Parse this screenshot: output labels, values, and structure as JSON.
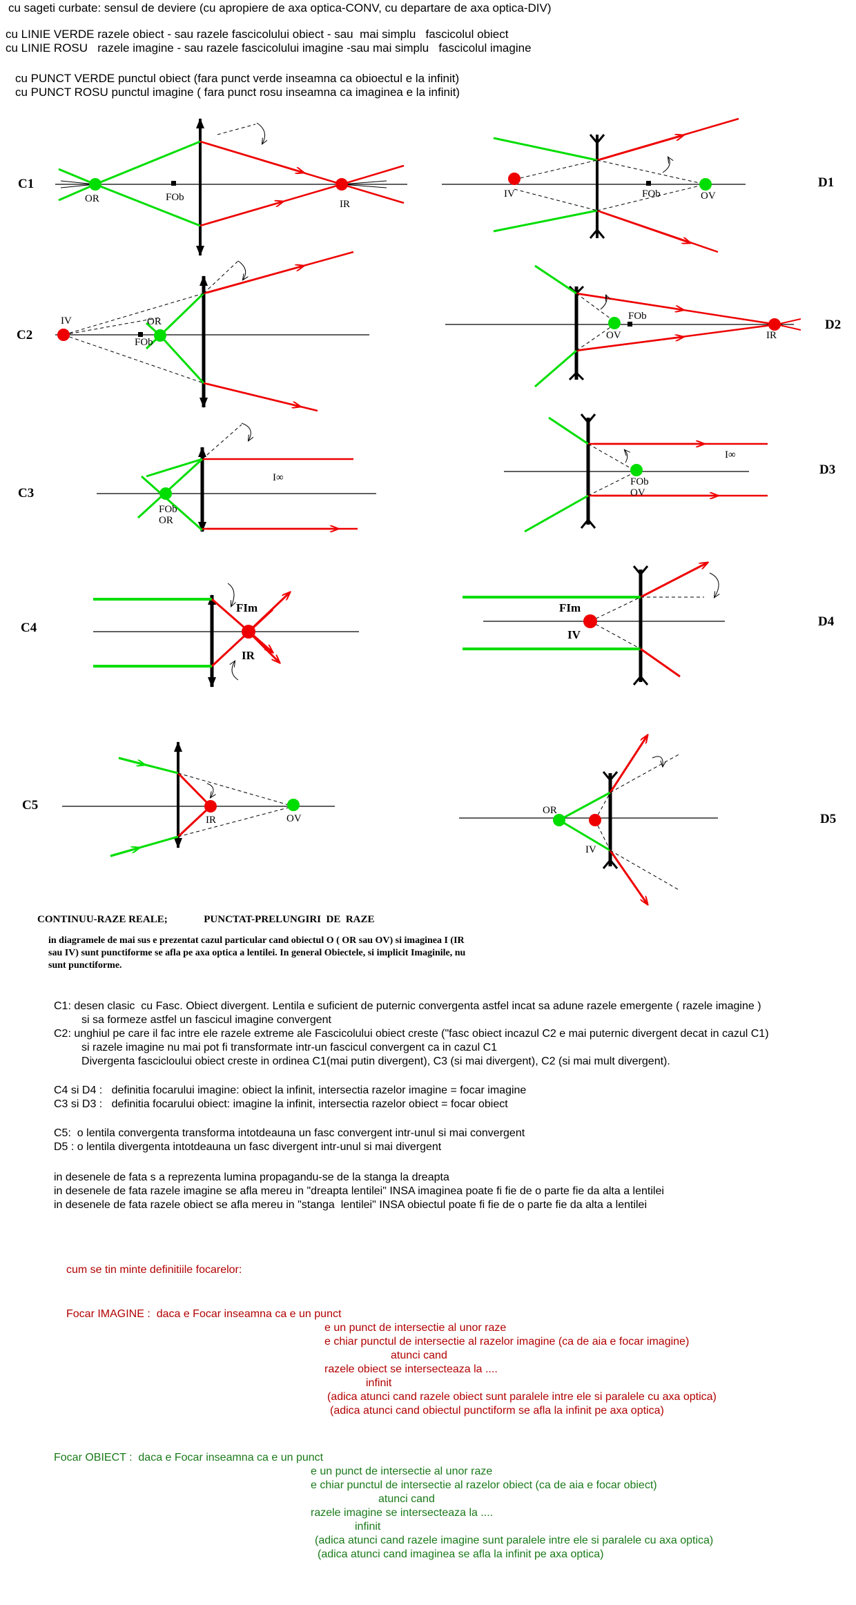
{
  "legend": {
    "line1": "cu sageti curbate: sensul de deviere (cu apropiere de axa optica-CONV, cu departare de axa optica-DIV)",
    "line2": "cu LINIE VERDE razele obiect - sau razele fascicolului obiect - sau  mai simplu   fascicolul obiect",
    "line3": "cu LINIE ROSU   razele imagine - sau razele fascicolului imagine -sau mai simplu   fascicolul imagine",
    "line4": "cu PUNCT VERDE punctul obiect (fara punct verde inseamna ca obioectul e la infinit)",
    "line5": "cu PUNCT ROSU punctul imagine ( fara punct rosu inseamna ca imaginea e la infinit)"
  },
  "labels": {
    "C1": "C1",
    "C2": "C2",
    "C3": "C3",
    "C4": "C4",
    "C5": "C5",
    "D1": "D1",
    "D2": "D2",
    "D3": "D3",
    "D4": "D4",
    "D5": "D5",
    "OR": "OR",
    "IR": "IR",
    "IV": "IV",
    "OV": "OV",
    "FOb": "FOb",
    "Iinf": "I∞",
    "FIm": "FIm"
  },
  "colors": {
    "object": "#00dd00",
    "image": "#ee0000",
    "lens": "#000000"
  },
  "caption": {
    "line_types": "CONTINUU-RAZE REALE;              PUNCTAT-PRELUNGIRI  DE  RAZE",
    "p1": "in diagramele de mai sus e prezentat cazul particular cand obiectul O ( OR sau OV) si imaginea I (IR",
    "p2": "sau IV) sunt punctiforme se afla pe axa optica a lentilei. In general Obiectele, si implicit Imaginile, nu",
    "p3": "sunt punctiforme."
  },
  "notes": {
    "c1": "C1: desen clasic  cu Fasc. Obiect divergent. Lentila e suficient de puternic convergenta astfel incat sa adune razele emergente ( razele imagine )",
    "c1b": "         si sa formeze astfel un fascicul imagine convergent",
    "c2": "C2: unghiul pe care il fac intre ele razele extreme ale Fascicolului obiect creste (\"fasc obiect incazul C2 e mai puternic divergent decat in cazul C1)",
    "c2b": "         si razele imagine nu mai pot fi transformate intr-un fascicul convergent ca in cazul C1",
    "c2c": "         Divergenta fascicloului obiect creste in ordinea C1(mai putin divergent), C3 (si mai divergent), C2 (si mai mult divergent).",
    "c4d4": "C4 si D4 :   definitia focarului imagine: obiect la infinit, intersectia razelor imagine = focar imagine",
    "c3d3": "C3 si D3 :   definitia focarului obiect: imagine la infinit, intersectia razelor obiect = focar obiect",
    "c5": "C5:  o lentila convergenta transforma intotdeauna un fasc convergent intr-unul si mai convergent",
    "d5": "D5 : o lentila divergenta intotdeauna un fasc divergent intr-unul si mai divergent",
    "p1": "in desenele de fata s a reprezenta lumina propagandu-se de la stanga la dreapta",
    "p2": "in desenele de fata razele imagine se afla mereu in \"dreapta lentilei\" INSA imaginea poate fi fie de o parte fie da alta a lentilei",
    "p3": "in desenele de fata razele obiect se afla mereu in \"stanga  lentilei\" INSA obiectul poate fi fie de o parte fie da alta a lentilei"
  },
  "mnemonic": {
    "title": "cum se tin minte definitiile focarelor:",
    "img1": "Focar IMAGINE :  daca e Focar inseamna ca e un punct",
    "img2": "e un punct de intersectie al unor raze",
    "img3": "e chiar punctul de intersectie al razelor imagine (ca de aia e focar imagine)",
    "img4": "atunci cand",
    "img5": "razele obiect se intersecteaza la ....",
    "img6": "infinit",
    "img7": "(adica atunci cand razele obiect sunt paralele intre ele si paralele cu axa optica)",
    "img8": "(adica atunci cand obiectul punctiform se afla la infinit pe axa optica)",
    "obj1": "Focar OBIECT :  daca e Focar inseamna ca e un punct",
    "obj2": "e un punct de intersectie al unor raze",
    "obj3": "e chiar punctul de intersectie al razelor obiect (ca de aia e focar obiect)",
    "obj4": "atunci cand",
    "obj5": "razele imagine se intersecteaza la ....",
    "obj6": "infinit",
    "obj7": "(adica atunci cand razele imagine sunt paralele intre ele si paralele cu axa optica)",
    "obj8": "(adica atunci cand imaginea se afla la infinit pe axa optica)"
  }
}
